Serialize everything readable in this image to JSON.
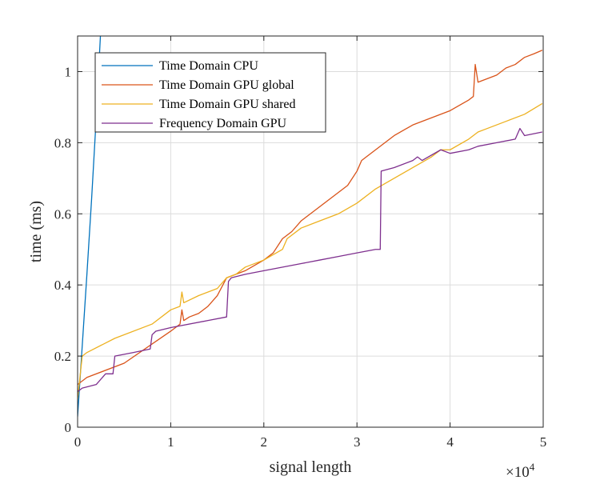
{
  "chart_data": {
    "type": "line",
    "xlabel": "signal length",
    "ylabel": "time (ms)",
    "x_multiplier": "×10",
    "x_multiplier_exponent": "4",
    "xlim": [
      0,
      5
    ],
    "ylim": [
      0,
      1.1
    ],
    "grid": true,
    "legend_position": "top-left",
    "x_ticks": [
      0,
      1,
      2,
      3,
      4,
      5
    ],
    "y_ticks": [
      0,
      0.2,
      0.4,
      0.6,
      0.8,
      1
    ],
    "x_tick_labels": [
      "0",
      "1",
      "2",
      "3",
      "4",
      "5"
    ],
    "y_tick_labels": [
      "0",
      "0.2",
      "0.4",
      "0.6",
      "0.8",
      "1"
    ],
    "series": [
      {
        "name": "Time Domain CPU",
        "color": "#0072BD",
        "x": [
          0,
          0.05,
          0.1,
          0.15,
          0.2,
          0.245
        ],
        "y": [
          0.03,
          0.23,
          0.43,
          0.64,
          0.87,
          1.1
        ]
      },
      {
        "name": "Time Domain GPU global",
        "color": "#D95319",
        "x": [
          0,
          0.1,
          0.5,
          1.0,
          1.1,
          1.12,
          1.14,
          1.2,
          1.3,
          1.4,
          1.5,
          1.6,
          1.8,
          2.0,
          2.1,
          2.2,
          2.3,
          2.4,
          2.5,
          2.6,
          2.7,
          2.8,
          2.9,
          3.0,
          3.05,
          3.1,
          3.2,
          3.4,
          3.6,
          3.8,
          4.0,
          4.2,
          4.25,
          4.27,
          4.3,
          4.5,
          4.6,
          4.7,
          4.8,
          4.9,
          4.99
        ],
        "y": [
          0.12,
          0.14,
          0.18,
          0.27,
          0.29,
          0.33,
          0.3,
          0.31,
          0.32,
          0.34,
          0.37,
          0.42,
          0.44,
          0.47,
          0.49,
          0.53,
          0.55,
          0.58,
          0.6,
          0.62,
          0.64,
          0.66,
          0.68,
          0.72,
          0.75,
          0.76,
          0.78,
          0.82,
          0.85,
          0.87,
          0.89,
          0.92,
          0.93,
          1.02,
          0.97,
          0.99,
          1.01,
          1.02,
          1.04,
          1.05,
          1.06
        ]
      },
      {
        "name": "Time Domain GPU shared",
        "color": "#EDB120",
        "x": [
          0,
          0.05,
          0.1,
          0.4,
          0.8,
          1.0,
          1.1,
          1.12,
          1.14,
          1.3,
          1.5,
          1.6,
          1.7,
          1.8,
          2.0,
          2.2,
          2.25,
          2.4,
          2.6,
          2.8,
          3.0,
          3.2,
          3.4,
          3.6,
          3.8,
          3.9,
          4.0,
          4.2,
          4.3,
          4.4,
          4.6,
          4.8,
          4.99
        ],
        "y": [
          0.08,
          0.2,
          0.21,
          0.25,
          0.29,
          0.33,
          0.34,
          0.38,
          0.35,
          0.37,
          0.39,
          0.42,
          0.43,
          0.45,
          0.47,
          0.5,
          0.53,
          0.56,
          0.58,
          0.6,
          0.63,
          0.67,
          0.7,
          0.73,
          0.76,
          0.78,
          0.78,
          0.81,
          0.83,
          0.84,
          0.86,
          0.88,
          0.91
        ]
      },
      {
        "name": "Frequency Domain  GPU",
        "color": "#7E2F8E",
        "x": [
          0,
          0.05,
          0.2,
          0.3,
          0.38,
          0.4,
          0.6,
          0.78,
          0.8,
          0.84,
          1.0,
          1.4,
          1.6,
          1.62,
          1.65,
          1.8,
          2.0,
          2.4,
          2.6,
          2.8,
          3.0,
          3.2,
          3.25,
          3.26,
          3.4,
          3.6,
          3.65,
          3.7,
          3.9,
          4.0,
          4.2,
          4.3,
          4.5,
          4.7,
          4.75,
          4.8,
          4.99
        ],
        "y": [
          0.1,
          0.11,
          0.12,
          0.15,
          0.15,
          0.2,
          0.21,
          0.22,
          0.26,
          0.27,
          0.28,
          0.3,
          0.31,
          0.41,
          0.42,
          0.43,
          0.44,
          0.46,
          0.47,
          0.48,
          0.49,
          0.5,
          0.5,
          0.72,
          0.73,
          0.75,
          0.76,
          0.75,
          0.78,
          0.77,
          0.78,
          0.79,
          0.8,
          0.81,
          0.84,
          0.82,
          0.83
        ]
      }
    ]
  }
}
